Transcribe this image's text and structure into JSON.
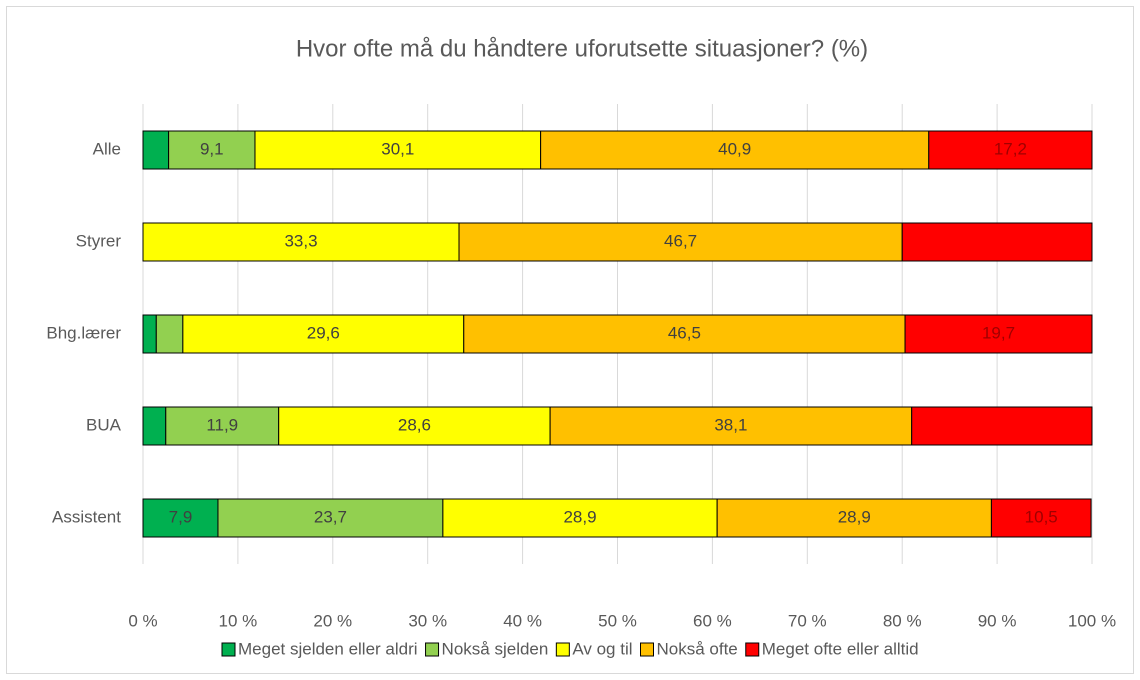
{
  "chart_data": {
    "type": "stacked-bar",
    "title": "Hvor ofte må du håndtere uforutsette situasjoner? (%)",
    "categories": [
      "Alle",
      "Styrer",
      "Bhg.lærer",
      "BUA",
      "Assistent"
    ],
    "series": [
      {
        "name": "Meget sjelden eller aldri",
        "color": "#00b050",
        "values": [
          2.7,
          0,
          1.4,
          2.4,
          7.9
        ],
        "value_labels": [
          null,
          null,
          null,
          null,
          "7,9"
        ]
      },
      {
        "name": "Nokså sjelden",
        "color": "#92d050",
        "values": [
          9.1,
          0,
          2.8,
          11.9,
          23.7
        ],
        "value_labels": [
          "9,1",
          null,
          null,
          "11,9",
          "23,7"
        ]
      },
      {
        "name": "Av og til",
        "color": "#ffff00",
        "values": [
          30.1,
          33.3,
          29.6,
          28.6,
          28.9
        ],
        "value_labels": [
          "30,1",
          "33,3",
          "29,6",
          "28,6",
          "28,9"
        ]
      },
      {
        "name": "Nokså ofte",
        "color": "#ffc000",
        "values": [
          40.9,
          46.7,
          46.5,
          38.1,
          28.9
        ],
        "value_labels": [
          "40,9",
          "46,7",
          "46,5",
          "38,1",
          "28,9"
        ]
      },
      {
        "name": "Meget ofte eller alltid",
        "color": "#ff0000",
        "values": [
          17.2,
          20,
          19.7,
          19,
          10.5
        ],
        "value_labels": [
          "17,2",
          null,
          "19,7",
          null,
          "10,5"
        ]
      }
    ],
    "xlim": [
      0,
      100
    ],
    "xticks": [
      {
        "value": 0,
        "label": "0 %"
      },
      {
        "value": 10,
        "label": "10 %"
      },
      {
        "value": 20,
        "label": "20 %"
      },
      {
        "value": 30,
        "label": "30 %"
      },
      {
        "value": 40,
        "label": "40 %"
      },
      {
        "value": 50,
        "label": "50 %"
      },
      {
        "value": 60,
        "label": "60 %"
      },
      {
        "value": 70,
        "label": "70 %"
      },
      {
        "value": 80,
        "label": "80 %"
      },
      {
        "value": 90,
        "label": "90 %"
      },
      {
        "value": 100,
        "label": "100 %"
      }
    ],
    "grid": true,
    "legend": "bottom"
  }
}
